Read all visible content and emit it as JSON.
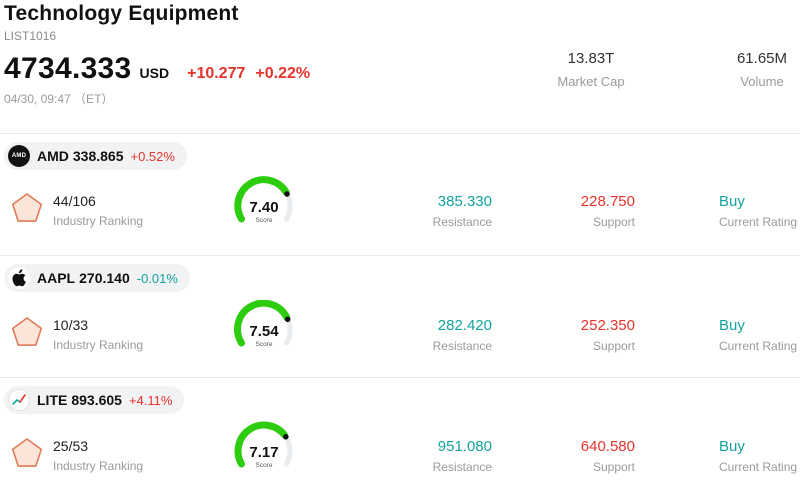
{
  "header": {
    "title": "Technology Equipment",
    "list_id": "LIST1016",
    "price": "4734.333",
    "currency": "USD",
    "change": "+10.277",
    "change_pct": "+0.22%",
    "timestamp": "04/30, 09:47 （ET）",
    "market_cap": {
      "value": "13.83T",
      "label": "Market Cap"
    },
    "volume": {
      "value": "61.65M",
      "label": "Volume"
    }
  },
  "labels": {
    "industry_ranking": "Industry Ranking",
    "resistance": "Resistance",
    "support": "Support",
    "current_rating": "Current Rating",
    "score": "Score"
  },
  "colors": {
    "up": "#e5342c",
    "down": "#13a39e",
    "gauge_green": "#2ecc0e"
  },
  "stocks": [
    {
      "ticker": "AMD",
      "price": "338.865",
      "change_pct": "+0.52%",
      "direction": "up",
      "icon": "amd-logo-icon",
      "ranking": "44/106",
      "score": "7.40",
      "resistance": "385.330",
      "support": "228.750",
      "rating": "Buy"
    },
    {
      "ticker": "AAPL",
      "price": "270.140",
      "change_pct": "-0.01%",
      "direction": "down",
      "icon": "apple-logo-icon",
      "ranking": "10/33",
      "score": "7.54",
      "resistance": "282.420",
      "support": "252.350",
      "rating": "Buy"
    },
    {
      "ticker": "LITE",
      "price": "893.605",
      "change_pct": "+4.11%",
      "direction": "up",
      "icon": "lite-logo-icon",
      "ranking": "25/53",
      "score": "7.17",
      "resistance": "951.080",
      "support": "640.580",
      "rating": "Buy"
    }
  ]
}
